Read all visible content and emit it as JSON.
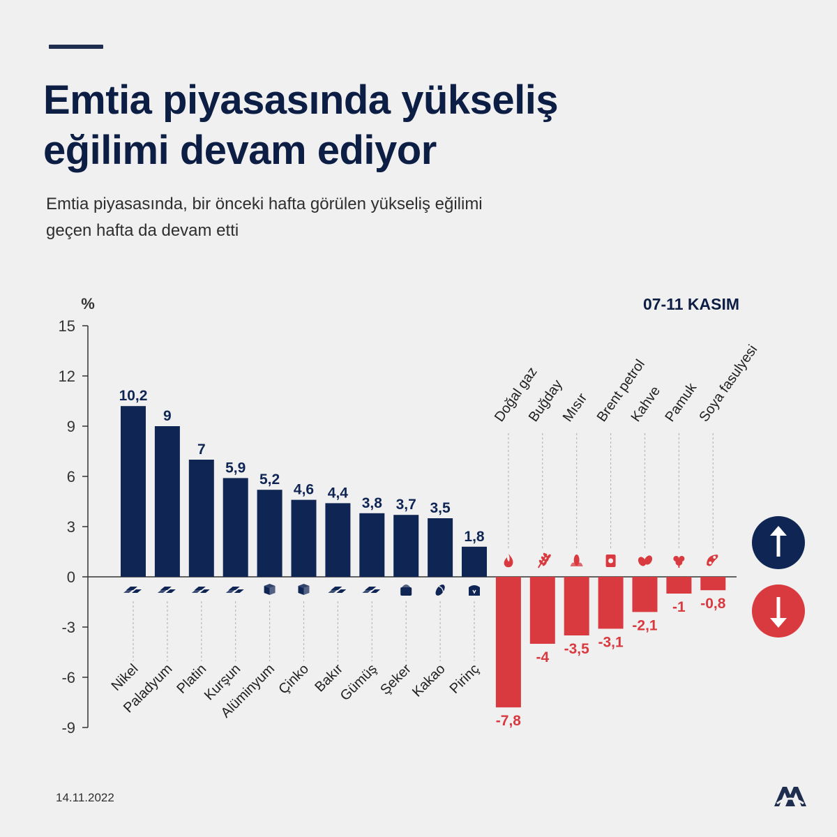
{
  "header": {
    "title_line1": "Emtia piyasasında yükseliş",
    "title_line2": "eğilimi devam ediyor",
    "subtitle_line1": "Emtia piyasasında, bir önceki hafta görülen yükseliş eğilimi",
    "subtitle_line2": "geçen hafta da devam etti"
  },
  "footer": {
    "date": "14.11.2022",
    "logo_text": "AA"
  },
  "colors": {
    "positive": "#0f2554",
    "negative": "#d93a3f",
    "text_dark": "#0d1e45",
    "background": "#f1f0f0"
  },
  "chart_data": {
    "type": "bar",
    "period_label": "07-11 KASIM",
    "ylabel": "%",
    "ylim": [
      -9,
      15
    ],
    "yticks": [
      "15",
      "12",
      "9",
      "6",
      "3",
      "0",
      "-3",
      "-6",
      "-9"
    ],
    "categories": [
      "Nikel",
      "Paladyum",
      "Platin",
      "Kurşun",
      "Alüminyum",
      "Çinko",
      "Bakır",
      "Gümüş",
      "Şeker",
      "Kakao",
      "Pirinç",
      "Doğal gaz",
      "Buğday",
      "Mısır",
      "Brent petrol",
      "Kahve",
      "Pamuk",
      "Soya fasulyesi"
    ],
    "values": [
      10.2,
      9,
      7,
      5.9,
      5.2,
      4.6,
      4.4,
      3.8,
      3.7,
      3.5,
      1.8,
      -7.8,
      -4,
      -3.5,
      -3.1,
      -2.1,
      -1,
      -0.8
    ],
    "value_labels": [
      "10,2",
      "9",
      "7",
      "5,9",
      "5,2",
      "4,6",
      "4,4",
      "3,8",
      "3,7",
      "3,5",
      "1,8",
      "-7,8",
      "-4",
      "-3,5",
      "-3,1",
      "-2,1",
      "-1",
      "-0,8"
    ],
    "icons": [
      "metal-bars-icon",
      "metal-bars-icon",
      "metal-bars-icon",
      "metal-bars-icon",
      "metal-block-icon",
      "metal-block-icon",
      "metal-bars-icon",
      "metal-bars-icon",
      "sugar-sack-icon",
      "cocoa-pod-icon",
      "rice-sack-icon",
      "flame-icon",
      "wheat-icon",
      "corn-icon",
      "oil-barrel-icon",
      "coffee-bean-icon",
      "cotton-icon",
      "soybean-icon"
    ],
    "legend": {
      "up": "up-arrow-icon",
      "down": "down-arrow-icon"
    },
    "grid": false
  }
}
